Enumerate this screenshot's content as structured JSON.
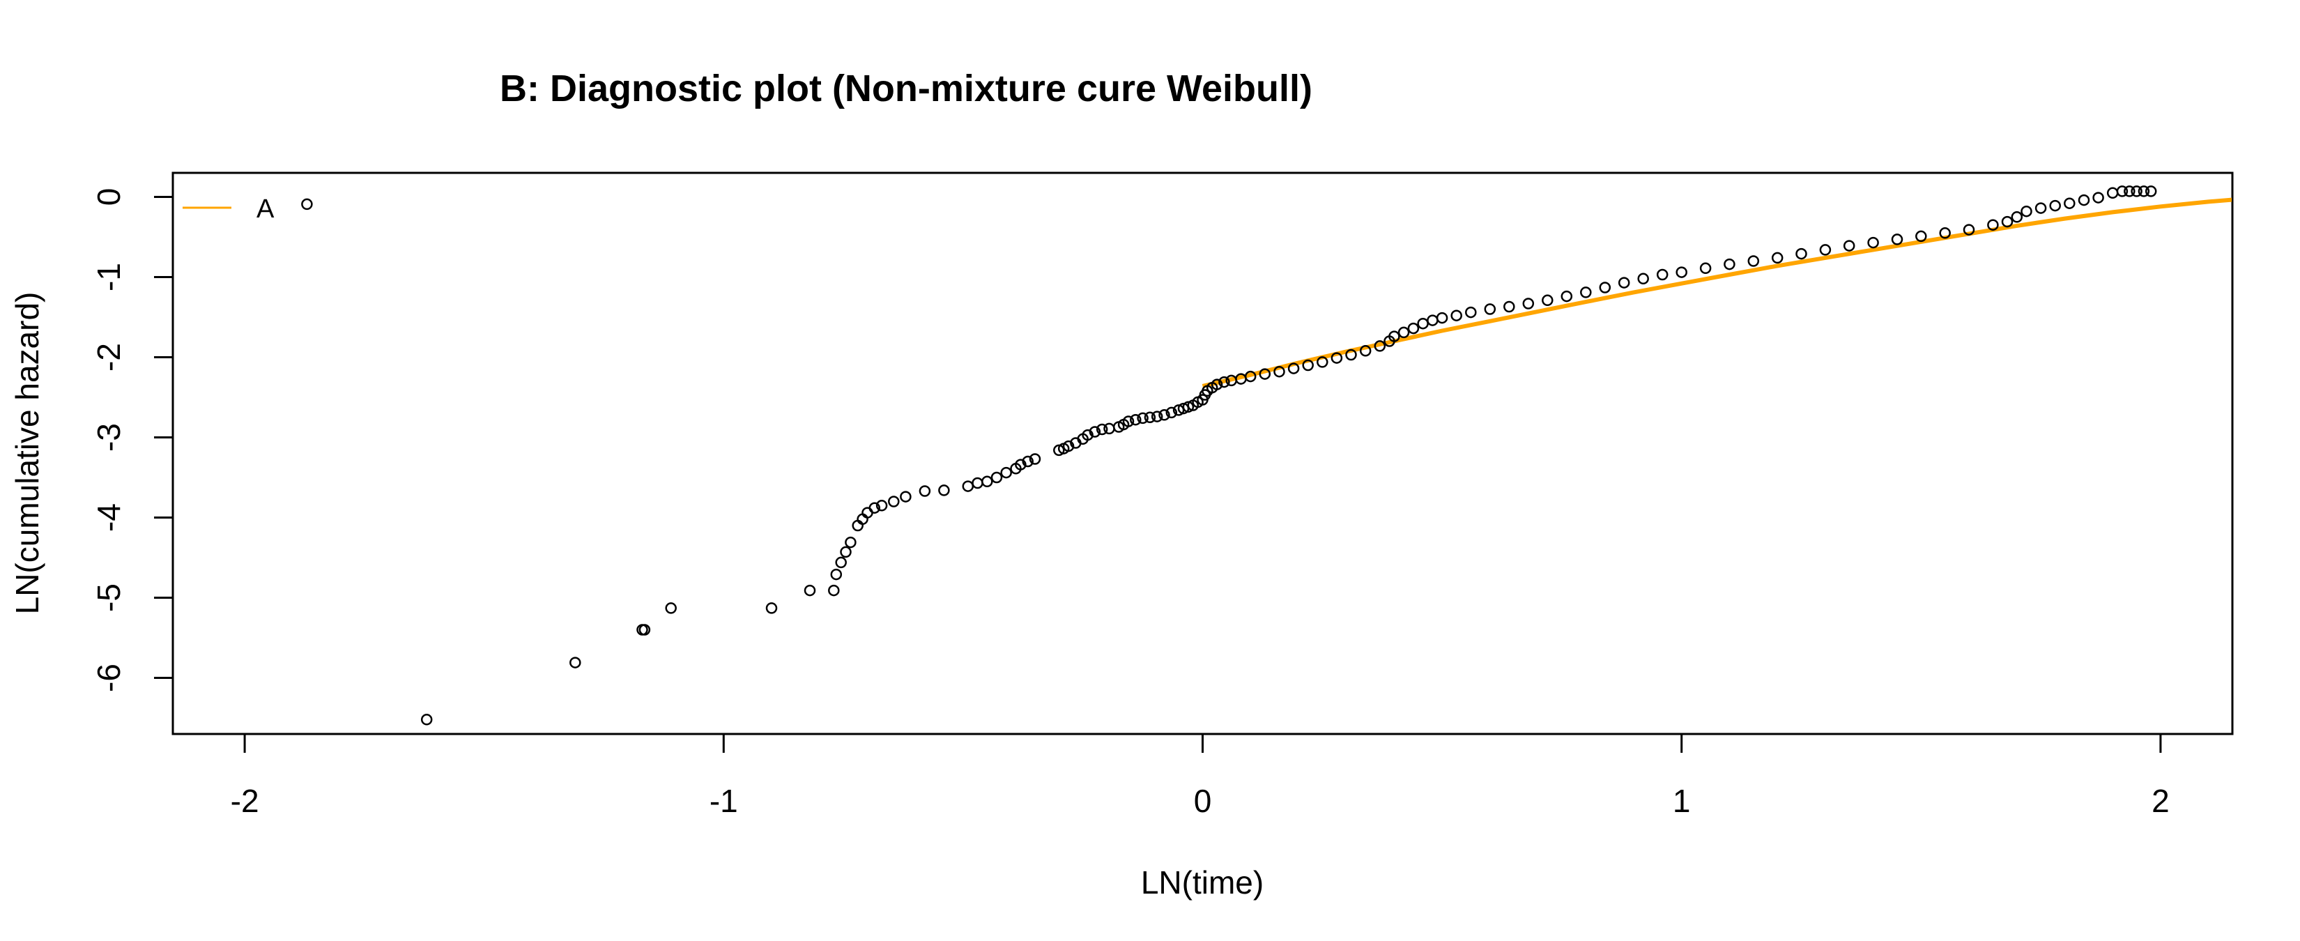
{
  "chart_data": {
    "type": "scatter",
    "title": "B: Diagnostic plot (Non-mixture cure Weibull)",
    "xlabel": "LN(time)",
    "ylabel": "LN(cumulative hazard)",
    "xlim": [
      -2.15,
      2.15
    ],
    "ylim": [
      -6.7,
      0.3
    ],
    "x_ticks": [
      -2,
      -1,
      0,
      1,
      2
    ],
    "y_ticks": [
      0,
      -1,
      -2,
      -3,
      -4,
      -5,
      -6
    ],
    "grid": false,
    "legend": {
      "position": "top-left",
      "entries": [
        {
          "label": "A",
          "color": "#FFA500"
        }
      ]
    },
    "colors": {
      "points": "#000000",
      "fit_line": "#FFA500"
    },
    "series": [
      {
        "type": "scatter",
        "marker": "open-circle",
        "points": [
          [
            -1.87,
            -0.09
          ],
          [
            -1.62,
            -6.52
          ],
          [
            -1.31,
            -5.81
          ],
          [
            -1.17,
            -5.4
          ],
          [
            -1.165,
            -5.4
          ],
          [
            -1.11,
            -5.13
          ],
          [
            -0.9,
            -5.13
          ],
          [
            -0.82,
            -4.91
          ],
          [
            -0.77,
            -4.91
          ],
          [
            -0.765,
            -4.71
          ],
          [
            -0.755,
            -4.56
          ],
          [
            -0.745,
            -4.43
          ],
          [
            -0.735,
            -4.31
          ],
          [
            -0.72,
            -4.1
          ],
          [
            -0.71,
            -4.02
          ],
          [
            -0.7,
            -3.94
          ],
          [
            -0.685,
            -3.88
          ],
          [
            -0.67,
            -3.85
          ],
          [
            -0.645,
            -3.8
          ],
          [
            -0.62,
            -3.74
          ],
          [
            -0.58,
            -3.67
          ],
          [
            -0.54,
            -3.66
          ],
          [
            -0.49,
            -3.61
          ],
          [
            -0.47,
            -3.57
          ],
          [
            -0.45,
            -3.55
          ],
          [
            -0.43,
            -3.5
          ],
          [
            -0.41,
            -3.44
          ],
          [
            -0.39,
            -3.39
          ],
          [
            -0.38,
            -3.34
          ],
          [
            -0.365,
            -3.3
          ],
          [
            -0.35,
            -3.27
          ],
          [
            -0.3,
            -3.16
          ],
          [
            -0.29,
            -3.14
          ],
          [
            -0.28,
            -3.11
          ],
          [
            -0.265,
            -3.07
          ],
          [
            -0.25,
            -3.02
          ],
          [
            -0.24,
            -2.97
          ],
          [
            -0.225,
            -2.93
          ],
          [
            -0.21,
            -2.9
          ],
          [
            -0.195,
            -2.89
          ],
          [
            -0.175,
            -2.87
          ],
          [
            -0.165,
            -2.84
          ],
          [
            -0.155,
            -2.8
          ],
          [
            -0.14,
            -2.78
          ],
          [
            -0.125,
            -2.76
          ],
          [
            -0.11,
            -2.75
          ],
          [
            -0.095,
            -2.74
          ],
          [
            -0.08,
            -2.72
          ],
          [
            -0.065,
            -2.69
          ],
          [
            -0.05,
            -2.66
          ],
          [
            -0.04,
            -2.64
          ],
          [
            -0.03,
            -2.62
          ],
          [
            -0.02,
            -2.6
          ],
          [
            -0.01,
            -2.56
          ],
          [
            0.0,
            -2.53
          ],
          [
            0.005,
            -2.47
          ],
          [
            0.01,
            -2.42
          ],
          [
            0.02,
            -2.38
          ],
          [
            0.03,
            -2.34
          ],
          [
            0.045,
            -2.31
          ],
          [
            0.06,
            -2.29
          ],
          [
            0.08,
            -2.27
          ],
          [
            0.1,
            -2.24
          ],
          [
            0.13,
            -2.21
          ],
          [
            0.16,
            -2.18
          ],
          [
            0.19,
            -2.14
          ],
          [
            0.22,
            -2.1
          ],
          [
            0.25,
            -2.06
          ],
          [
            0.28,
            -2.01
          ],
          [
            0.31,
            -1.97
          ],
          [
            0.34,
            -1.92
          ],
          [
            0.37,
            -1.86
          ],
          [
            0.39,
            -1.8
          ],
          [
            0.4,
            -1.74
          ],
          [
            0.42,
            -1.69
          ],
          [
            0.44,
            -1.64
          ],
          [
            0.46,
            -1.58
          ],
          [
            0.48,
            -1.54
          ],
          [
            0.5,
            -1.51
          ],
          [
            0.53,
            -1.48
          ],
          [
            0.56,
            -1.44
          ],
          [
            0.6,
            -1.4
          ],
          [
            0.64,
            -1.37
          ],
          [
            0.68,
            -1.33
          ],
          [
            0.72,
            -1.29
          ],
          [
            0.76,
            -1.24
          ],
          [
            0.8,
            -1.19
          ],
          [
            0.84,
            -1.13
          ],
          [
            0.88,
            -1.07
          ],
          [
            0.92,
            -1.02
          ],
          [
            0.96,
            -0.97
          ],
          [
            1.0,
            -0.94
          ],
          [
            1.05,
            -0.89
          ],
          [
            1.1,
            -0.84
          ],
          [
            1.15,
            -0.8
          ],
          [
            1.2,
            -0.76
          ],
          [
            1.25,
            -0.71
          ],
          [
            1.3,
            -0.66
          ],
          [
            1.35,
            -0.61
          ],
          [
            1.4,
            -0.57
          ],
          [
            1.45,
            -0.53
          ],
          [
            1.5,
            -0.49
          ],
          [
            1.55,
            -0.45
          ],
          [
            1.6,
            -0.41
          ],
          [
            1.65,
            -0.35
          ],
          [
            1.68,
            -0.31
          ],
          [
            1.7,
            -0.25
          ],
          [
            1.72,
            -0.18
          ],
          [
            1.75,
            -0.14
          ],
          [
            1.78,
            -0.11
          ],
          [
            1.81,
            -0.08
          ],
          [
            1.84,
            -0.04
          ],
          [
            1.87,
            -0.01
          ],
          [
            1.9,
            0.05
          ],
          [
            1.92,
            0.07
          ],
          [
            1.935,
            0.07
          ],
          [
            1.95,
            0.07
          ],
          [
            1.965,
            0.07
          ],
          [
            1.98,
            0.07
          ]
        ]
      },
      {
        "type": "line",
        "points": [
          [
            0.0,
            -2.36
          ],
          [
            0.1,
            -2.22
          ],
          [
            0.2,
            -2.07
          ],
          [
            0.3,
            -1.93
          ],
          [
            0.4,
            -1.8
          ],
          [
            0.5,
            -1.67
          ],
          [
            0.6,
            -1.55
          ],
          [
            0.7,
            -1.43
          ],
          [
            0.8,
            -1.31
          ],
          [
            0.9,
            -1.19
          ],
          [
            1.0,
            -1.08
          ],
          [
            1.1,
            -0.97
          ],
          [
            1.2,
            -0.86
          ],
          [
            1.3,
            -0.76
          ],
          [
            1.4,
            -0.66
          ],
          [
            1.5,
            -0.56
          ],
          [
            1.6,
            -0.46
          ],
          [
            1.7,
            -0.36
          ],
          [
            1.8,
            -0.27
          ],
          [
            1.9,
            -0.19
          ],
          [
            2.0,
            -0.12
          ],
          [
            2.1,
            -0.06
          ],
          [
            2.16,
            -0.03
          ]
        ]
      }
    ]
  }
}
